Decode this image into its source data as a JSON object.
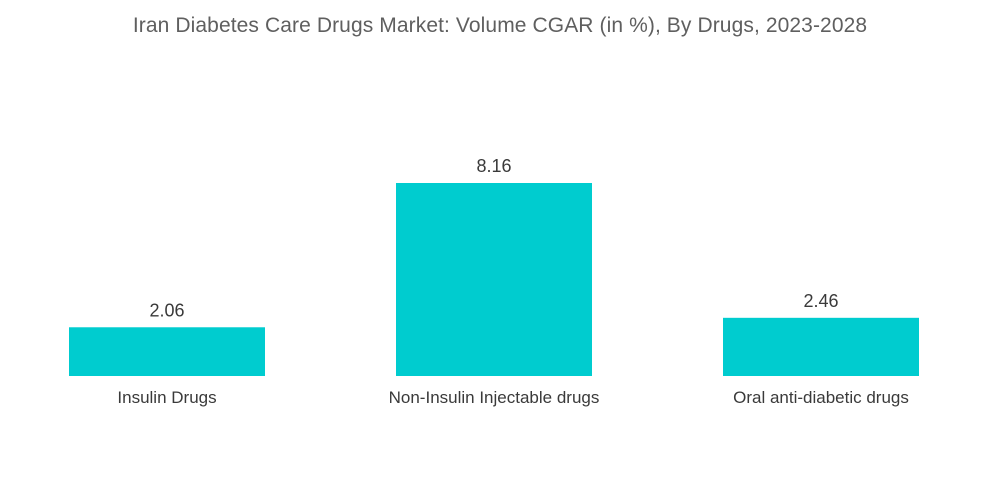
{
  "chart_data": {
    "type": "bar",
    "title": "Iran Diabetes Care Drugs Market: Volume CGAR (in %), By Drugs, 2023-2028",
    "categories": [
      "Insulin Drugs",
      "Non-Insulin Injectable drugs",
      "Oral anti-diabetic drugs"
    ],
    "values": [
      2.06,
      8.16,
      2.46
    ],
    "value_labels": [
      "2.06",
      "8.16",
      "2.46"
    ],
    "xlabel": "",
    "ylabel": "",
    "ylim": [
      0,
      8.16
    ],
    "grid": false,
    "legend": "none",
    "bar_color": "#00cccf"
  }
}
